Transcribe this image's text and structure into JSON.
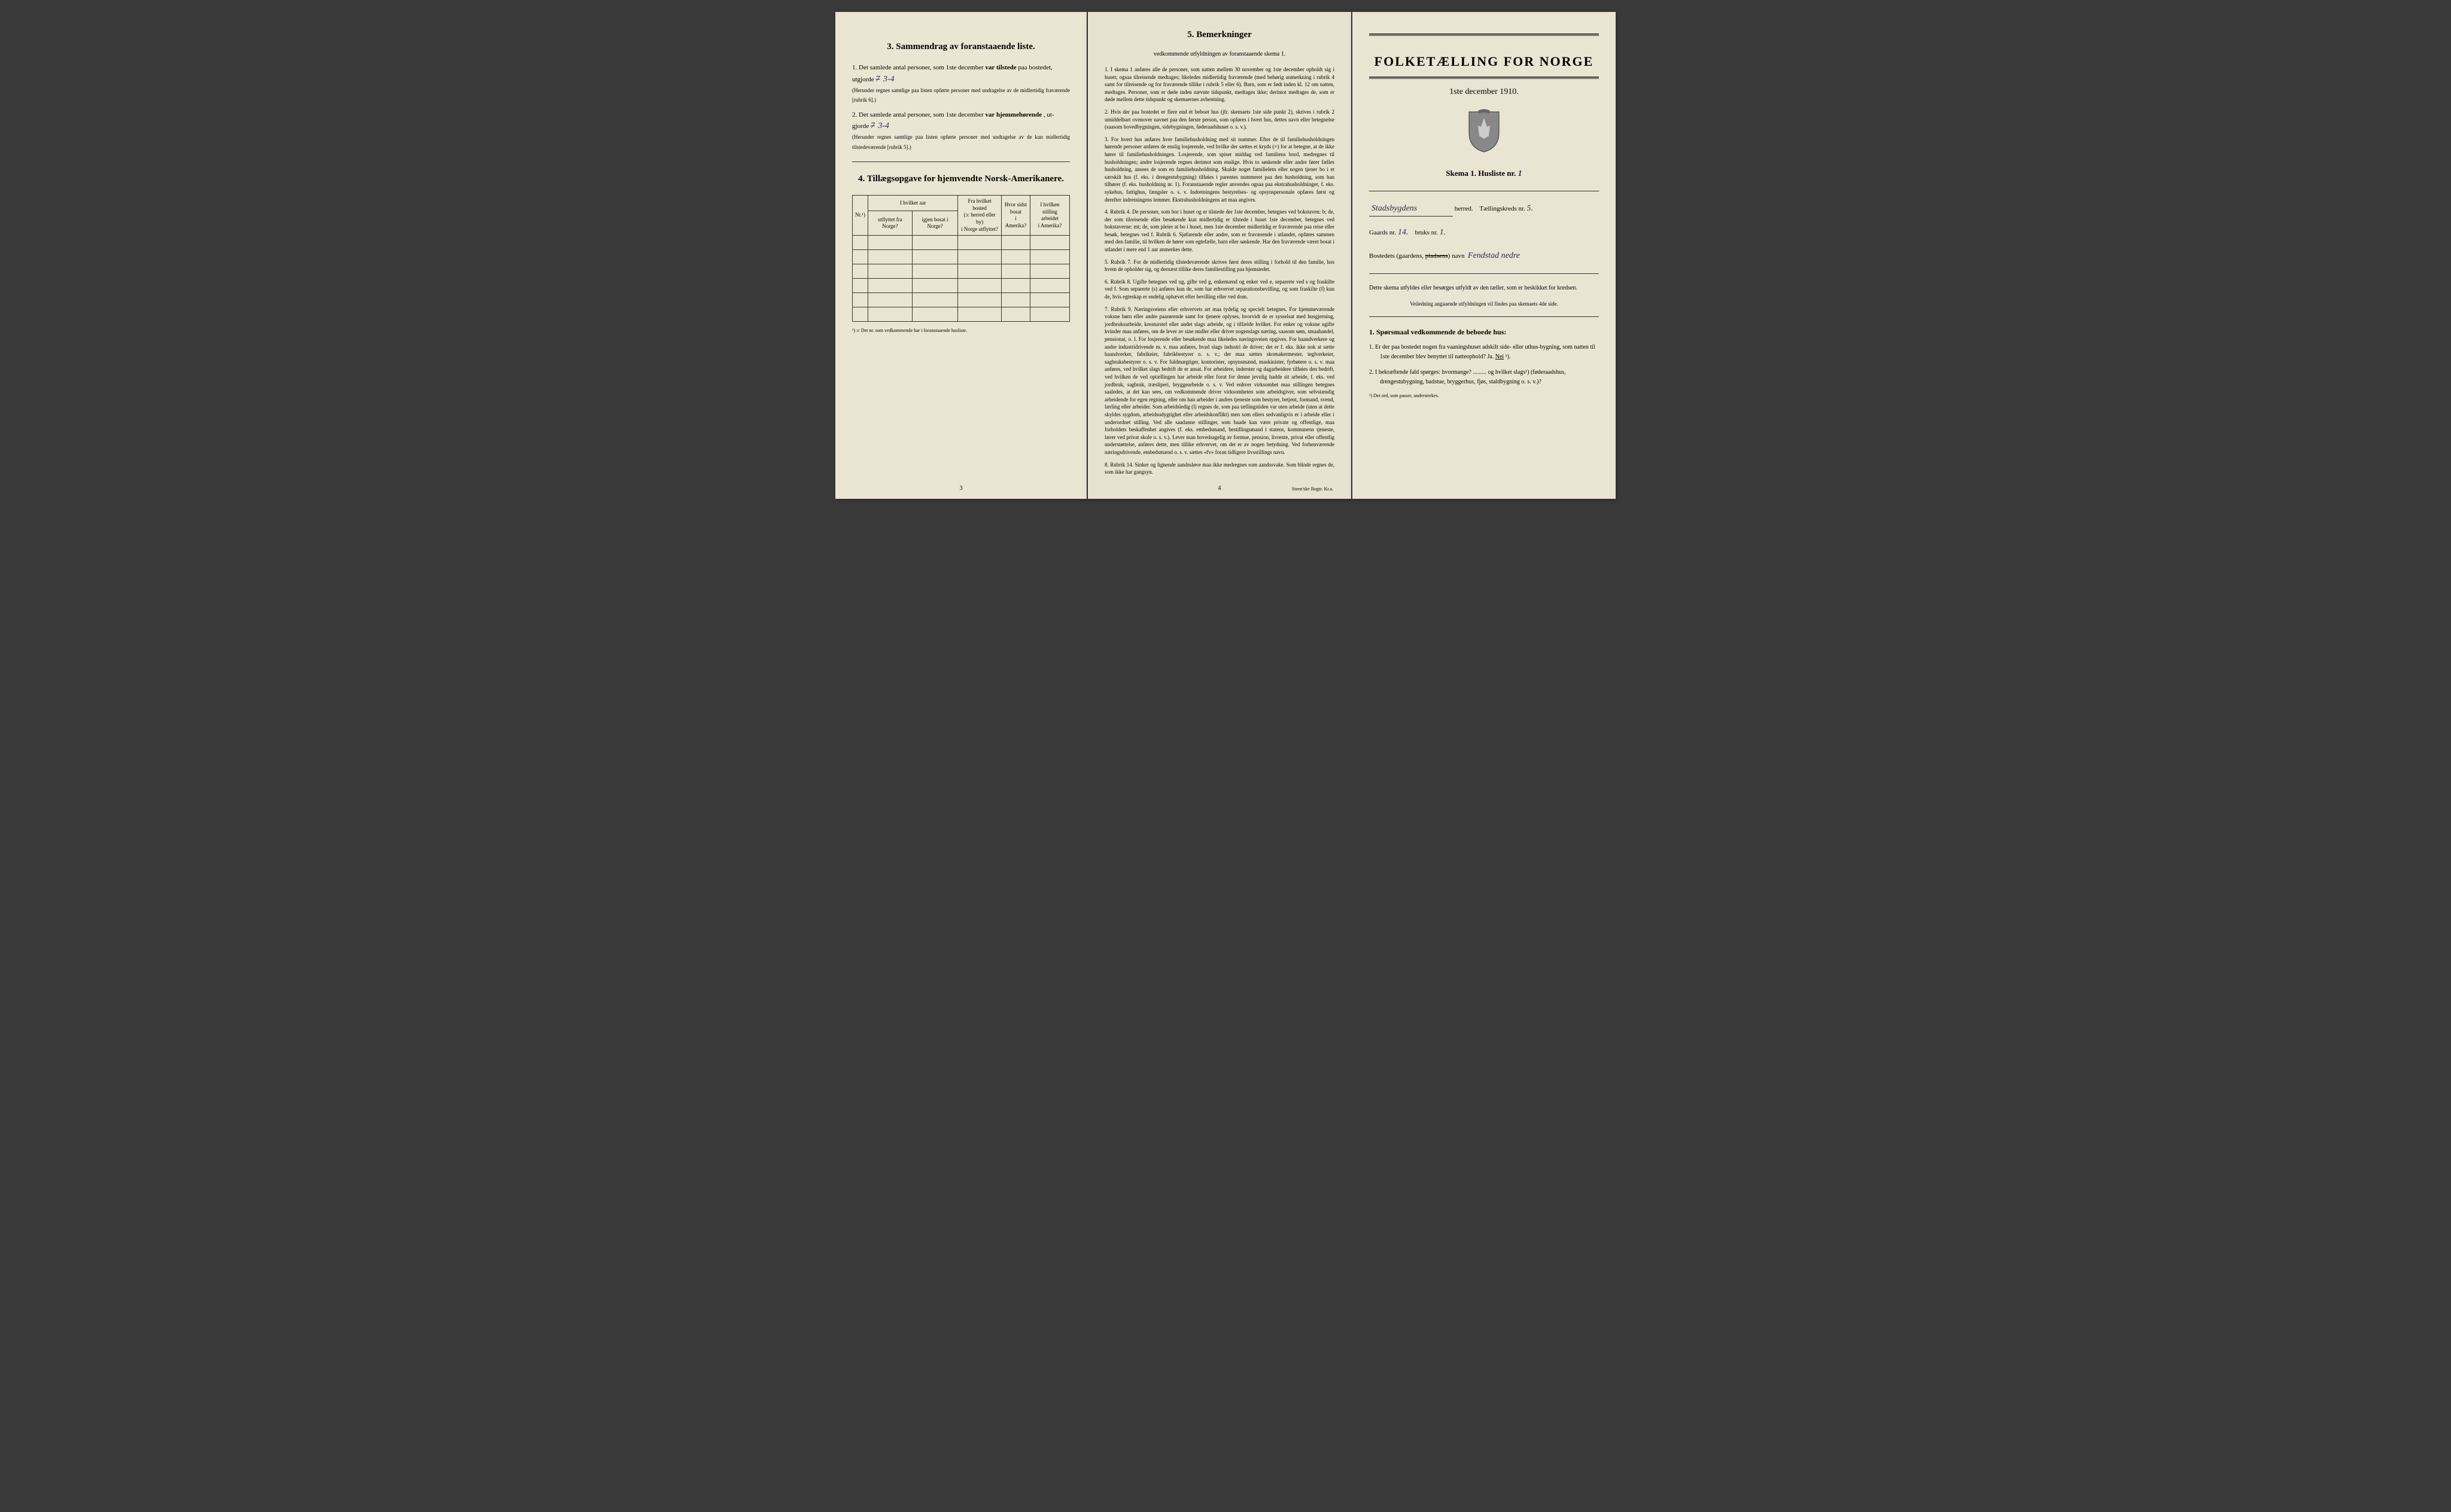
{
  "page_left": {
    "section3": {
      "heading": "3.   Sammendrag av foranstaaende liste.",
      "item1_prefix": "1. Det samlede antal personer, som 1ste december ",
      "item1_bold": "var tilstede",
      "item1_suffix": " paa bostedet,",
      "item1_line2_prefix": "utgjorde ",
      "item1_value_struck": "7",
      "item1_value": "3-4",
      "item1_note": "(Herunder regnes samtlige paa listen opførte personer med undtagelse av de midlertidig fraværende [rubrik 6].)",
      "item2_prefix": "2. Det samlede antal personer, som 1ste december ",
      "item2_bold": "var hjemmehørende",
      "item2_suffix": ", ut-",
      "item2_line2_prefix": "gjorde ",
      "item2_value_struck": "7",
      "item2_value": "3-4",
      "item2_note": "(Herunder regnes samtlige paa listen opførte personer med undtagelse av de kun midlertidig tilstedeværende [rubrik 5].)"
    },
    "section4": {
      "heading": "4.   Tillægsopgave for hjemvendte Norsk-Amerikanere.",
      "columns": {
        "col1": "Nr.¹)",
        "col2_line1": "I hvilket aar",
        "col2_sub1": "utflyttet fra Norge?",
        "col2_sub2": "igjen bosat i Norge?",
        "col3_line1": "Fra hvilket bosted",
        "col3_line2": "(ɔ: herred eller by)",
        "col3_line3": "i Norge utflyttet?",
        "col4_line1": "Hvor sidst",
        "col4_line2": "bosat",
        "col4_line3": "i Amerika?",
        "col5_line1": "I hvilken stilling",
        "col5_line2": "arbeidet",
        "col5_line3": "i Amerika?"
      },
      "footnote": "¹) ɔ: Det nr. som vedkommende har i foranstaaende husliste.",
      "empty_rows": 6
    },
    "page_number": "3"
  },
  "page_middle": {
    "heading": "5.   Bemerkninger",
    "sub_heading": "vedkommende utfyldningen av foranstaaende skema 1.",
    "remarks": [
      {
        "num": "1.",
        "text": "I skema 1 anføres alle de personer, som natten mellem 30 november og 1ste december opholdt sig i huset; ogsaa tilreisende medtages; likeledes midlertidig fraværende (med behørig anmerkning i rubrik 4 samt for tilreisende og for fraværende tillike i rubrik 5 eller 6). Barn, som er født inden kl. 12 om natten, medtages. Personer, som er døde inden nævnte tidspunkt, medtages ikke; derimot medtages de, som er døde mellem dette tidspunkt og skemaernes avhentning."
      },
      {
        "num": "2.",
        "text": "Hvis der paa bostedet er flere end ét beboet hus (jfr. skemaets 1ste side punkt 2), skrives i rubrik 2 umiddelbart ovenover navnet paa den første person, som opføres i hvert hus, dettes navn eller betegnelse (saasom hovedbygningen, sidebygningen, føderaadshuset o. s. v.)."
      },
      {
        "num": "3.",
        "text": "For hvert hus anføres hver familiehusholdning med sit nummer. Efter de til familiehusholdningen hørende personer anføres de enslig losjerende, ved hvilke der sættes et kryds (×) for at betegne, at de ikke hører til familiehusholdningen. Losjerende, som spiser middag ved familiens bord, medregnes til husholdningen; andre losjerende regnes derimot som enslige. Hvis to søskende eller andre fører fælles husholdning, ansees de som en familiehusholdning. Skulde noget familielem eller nogen tjener bo i et særskilt hus (f. eks. i drengestubygning) tilføies i parentes nummeret paa den husholdning, som han tilhører (f. eks. husholdning nr. 1). Foranstaaende regler anvendes ogsaa paa ekstrahusholdninger, f. eks. sykehus, fattighus, fængsler o. s. v. Indretningens bestyrelses- og opsynspersonale opføres først og derefter indretningens lemmer. Ekstrahusholdningens art maa angives."
      },
      {
        "num": "4.",
        "text": "Rubrik 4. De personer, som bor i huset og er tilstede der 1ste december, betegnes ved bokstaven: b; de, der som tilreisende eller besøkende kun midlertidig er tilstede i huset 1ste december, betegnes ved bokstaverne: mt; de, som pleier at bo i huset, men 1ste december midlertidig er fraværende paa reise eller besøk, betegnes ved f. Rubrik 6. Sjøfarende eller andre, som er fraværende i utlandet, opføres sammen med den familie, til hvilken de hører som egtefælle, barn eller søskende. Har den fraværende været bosat i utlandet i mere end 1 aar anmerkes dette."
      },
      {
        "num": "5.",
        "text": "Rubrik 7. For de midlertidig tilstedeværende skrives først deres stilling i forhold til den familie, hos hvem de opholder sig, og dernæst tillike deres familiestilling paa hjemstedet."
      },
      {
        "num": "6.",
        "text": "Rubrik 8. Ugifte betegnes ved ug, gifte ved g, enkemænd og enker ved e, separerte ved s og fraskilte ved f. Som separerte (s) anføres kun de, som har erhvervet separationsbevilling, og som fraskilte (f) kun de, hvis egteskap er endelig ophævet efter bevilling eller ved dom."
      },
      {
        "num": "7.",
        "text": "Rubrik 9. Næringsveiens eller erhvervets art maa tydelig og specielt betegnes. For hjemmeværende voksne børn eller andre paarørende samt for tjenere oplyses, hvorvidt de er sysselsat med husgjerning, jordbruksarbeide, kreaturstel eller andet slags arbeide, og i tilfælde hvilket. For enker og voksne ugifte kvinder maa anføres, om de lever av sine midler eller driver nogenslags næring, saasom søm, smaahandel, pensionat, o. l. For losjerende eller besøkende maa likeledes næringsveien opgives. For haandverkere og andre industridrivende m. v. maa anføres, hvad slags industri de driver; det er f. eks. ikke nok at sætte haandverker, fabrikeier, fabrikbestyrer o. s. v.; der maa sættes skomakermester, teglverkeier, sagbruksbestyrer o. s. v. For fuldmægtiger, kontorister, opsynsmænd, maskinister, fyrbøtere o. s. v. maa anføres, ved hvilket slags bedrift de er ansat. For arbeidere, inderster og dagarbeidere tilføies den bedrift, ved hvilken de ved optællingen har arbeide eller forut for denne jevnlig hadde sit arbeide, f. eks. ved jordbruk, sagbruk, træsliperi, bryggearbeide o. s. v. Ved enhver virksomhet maa stillingen betegnes saaledes, at det kan sees, om vedkommende driver virksomheten som arbeidsgiver, som selvstændig arbeidende for egen regning, eller om han arbeider i andres tjeneste som bestyrer, betjent, formand, svend, lærling eller arbeider. Som arbeidsledig (l) regnes de, som paa tællingstiden var uten arbeide (uten at dette skyldes sygdom, arbeidsudygtighet eller arbeidskonflikt) men som ellers sedvanligvis er i arbeide eller i underordnet stilling. Ved alle saadanne stillinger, som baade kan være private og offentlige, maa forholdets beskaffenhet angives (f. eks. embedsmand, bestillingsmand i statens, kommunens tjeneste, lærer ved privat skole o. s. v.). Lever man hovedsagelig av formue, pension, livrente, privat eller offentlig understøttelse, anføres dette, men tillike erhvervet, om det er av nogen betydning. Ved forhenværende næringsdrivende, embedsmænd o. s. v. sættes «fv» foran tidligere livsstillings navn."
      },
      {
        "num": "8.",
        "text": "Rubrik 14. Sinker og lignende aandssløve maa ikke medregnes som aandssvake. Som blinde regnes de, som ikke har gangsyn."
      }
    ],
    "page_number": "4",
    "footer": "Steen'ske Bogtr. Kr.a."
  },
  "page_right": {
    "main_title": "FOLKETÆLLING FOR NORGE",
    "date": "1ste december 1910.",
    "skema_label": "Skema 1.   Husliste nr.",
    "husliste_nr": "1",
    "herred_value": "Stadsbygdens",
    "herred_label": "herred.",
    "kreds_label": "Tællingskreds nr.",
    "kreds_value": "5.",
    "gaards_label": "Gaards nr.",
    "gaards_value": "14.",
    "bruks_label": "bruks nr.",
    "bruks_value": "1.",
    "bosted_label": "Bostedets (gaardens,",
    "bosted_struck": "pladsens",
    "bosted_label2": ") navn",
    "bosted_value": "Fendstad nedre",
    "instruction": "Dette skema utfyldes eller besørges utfyldt av den tæller, som er beskikket for kredsen.",
    "instruction_sub": "Veiledning angaaende utfyldningen vil findes paa skemaets 4de side.",
    "question_heading": "1. Spørsmaal vedkommende de beboede hus:",
    "q1": "1.  Er der paa bostedet nogen fra vaaningshuset adskilt side- eller uthus-bygning, som natten til 1ste december blev benyttet til natteophold?    Ja.   Nei ¹).",
    "q2": "2.  I bekræftende fald spørges: hvormange? ......... og hvilket slags¹) (føderaadshus, drengestubygning, badstue, bryggerhus, fjøs, staldbygning o. s. v.)?",
    "footnote": "¹) Det ord, som passer, understrekes."
  },
  "styling": {
    "page_bg": "#e8e2d0",
    "text_color": "#1a1a1a",
    "handwriting_color": "#2a2a4a",
    "border_color": "#333333"
  }
}
